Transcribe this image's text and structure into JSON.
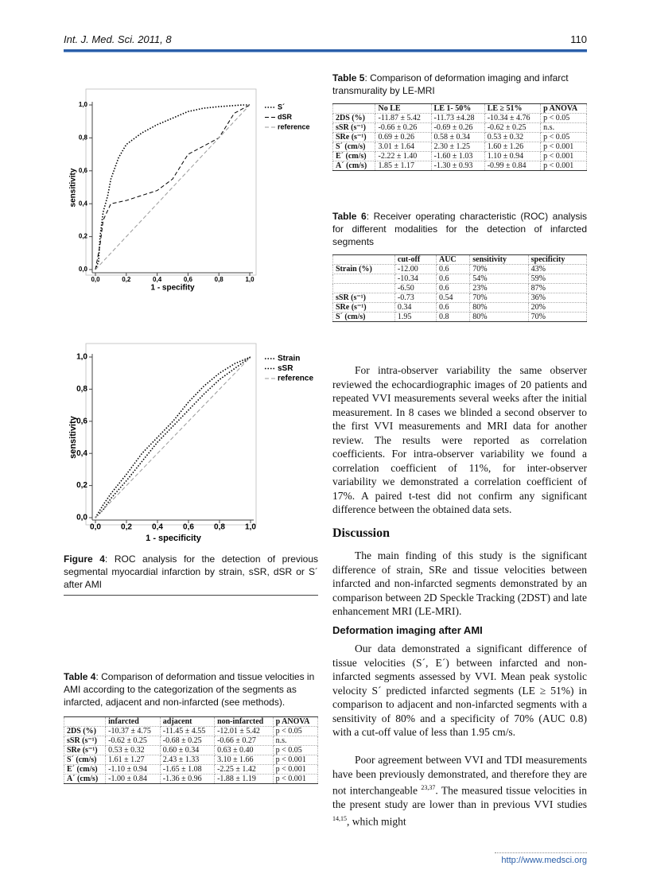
{
  "header": {
    "journal": "Int. J. Med. Sci. 2011, 8",
    "page": "110"
  },
  "chart_data": [
    {
      "type": "line",
      "x_label": "1 - specifity",
      "y_label": "sensitivity",
      "xlim": [
        0,
        1
      ],
      "ylim": [
        0,
        1
      ],
      "xticks": [
        {
          "value": 0,
          "label": "0,0"
        },
        {
          "value": 0.2,
          "label": "0,2"
        },
        {
          "value": 0.4,
          "label": "0,4"
        },
        {
          "value": 0.6,
          "label": "0,6"
        },
        {
          "value": 0.8,
          "label": "0,8"
        },
        {
          "value": 1,
          "label": "1,0"
        }
      ],
      "yticks": [
        {
          "value": 0,
          "label": "0,0"
        },
        {
          "value": 0.2,
          "label": "0,2"
        },
        {
          "value": 0.4,
          "label": "0,4"
        },
        {
          "value": 0.6,
          "label": "0,6"
        },
        {
          "value": 0.8,
          "label": "0,8"
        },
        {
          "value": 1,
          "label": "1,0"
        }
      ],
      "series": [
        {
          "name": "S´",
          "color": "#000000",
          "line_style": "dotted",
          "x": [
            0,
            0.02,
            0.03,
            0.05,
            0.08,
            0.1,
            0.15,
            0.2,
            0.3,
            0.4,
            0.5,
            0.6,
            0.7,
            0.8,
            0.95,
            1
          ],
          "values": [
            0,
            0.05,
            0.2,
            0.35,
            0.45,
            0.55,
            0.68,
            0.76,
            0.83,
            0.88,
            0.92,
            0.96,
            0.98,
            0.99,
            1,
            1
          ]
        },
        {
          "name": "dSR",
          "color": "#000000",
          "line_style": "dashed",
          "x": [
            0,
            0.03,
            0.05,
            0.1,
            0.2,
            0.3,
            0.4,
            0.5,
            0.6,
            0.7,
            0.8,
            0.9,
            1
          ],
          "values": [
            0,
            0.15,
            0.3,
            0.4,
            0.42,
            0.45,
            0.48,
            0.55,
            0.7,
            0.75,
            0.8,
            0.95,
            1
          ]
        },
        {
          "name": "reference",
          "color": "#999999",
          "line_style": "dashed",
          "x": [
            0,
            1
          ],
          "values": [
            0,
            1
          ]
        }
      ]
    },
    {
      "type": "line",
      "x_label": "1 - specificity",
      "y_label": "sensitivity",
      "xlim": [
        0,
        1
      ],
      "ylim": [
        0,
        1
      ],
      "xticks": [
        {
          "value": 0,
          "label": "0,0"
        },
        {
          "value": 0.2,
          "label": "0,2"
        },
        {
          "value": 0.4,
          "label": "0,4"
        },
        {
          "value": 0.6,
          "label": "0,6"
        },
        {
          "value": 0.8,
          "label": "0,8"
        },
        {
          "value": 1,
          "label": "1,0"
        }
      ],
      "yticks": [
        {
          "value": 0,
          "label": "0,0"
        },
        {
          "value": 0.2,
          "label": "0,2"
        },
        {
          "value": 0.4,
          "label": "0,4"
        },
        {
          "value": 0.6,
          "label": "0,6"
        },
        {
          "value": 0.8,
          "label": "0,8"
        },
        {
          "value": 1,
          "label": "1,0"
        }
      ],
      "series": [
        {
          "name": "Strain",
          "color": "#000000",
          "line_style": "dotted",
          "x": [
            0,
            0.05,
            0.1,
            0.2,
            0.3,
            0.4,
            0.5,
            0.6,
            0.7,
            0.8,
            0.9,
            1
          ],
          "values": [
            0,
            0.08,
            0.15,
            0.27,
            0.4,
            0.5,
            0.6,
            0.72,
            0.82,
            0.9,
            0.96,
            1
          ]
        },
        {
          "name": "sSR",
          "color": "#000000",
          "line_style": "dotted",
          "x": [
            0,
            0.05,
            0.1,
            0.2,
            0.3,
            0.4,
            0.5,
            0.6,
            0.7,
            0.8,
            0.9,
            1
          ],
          "values": [
            0,
            0.05,
            0.12,
            0.23,
            0.35,
            0.47,
            0.57,
            0.67,
            0.77,
            0.86,
            0.93,
            1
          ]
        },
        {
          "name": "reference",
          "color": "#999999",
          "line_style": "dashed",
          "x": [
            0,
            1
          ],
          "values": [
            0,
            1
          ]
        }
      ]
    }
  ],
  "figure_caption": {
    "label": "Figure 4",
    "text": ": ROC analysis for the detection of previous segmental myocardial infarction by strain, sSR, dSR or S´ after AMI"
  },
  "table4": {
    "label": "Table 4",
    "caption": ": Comparison of deformation and tissue velocities in AMI according to the categorization of the segments as infarcted, adjacent and non-infarcted (see methods).",
    "rows": [
      [
        null,
        "infarcted",
        "adjacent",
        "non-infarcted",
        "p ANOVA"
      ],
      [
        "2DS (%)",
        "-10.37 ± 4.75",
        "-11.45 ± 4.55",
        "-12.01 ± 5.42",
        "p < 0.05"
      ],
      [
        "sSR (s⁻¹)",
        "-0.62 ± 0.25",
        "-0.68 ± 0.25",
        "-0.66 ± 0.27",
        "n.s."
      ],
      [
        "SRe (s⁻¹)",
        "0.53 ± 0.32",
        "0.60 ± 0.34",
        "0.63 ± 0.40",
        "p < 0.05"
      ],
      [
        "S´ (cm/s)",
        "1.61 ± 1.27",
        "2.43 ± 1.33",
        "3.10 ± 1.66",
        "p < 0.001"
      ],
      [
        "E´ (cm/s)",
        "-1.10 ± 0.94",
        "-1.65 ± 1.08",
        "-2.25 ± 1.42",
        "p < 0.001"
      ],
      [
        "A´ (cm/s)",
        "-1.00 ± 0.84",
        "-1.36 ± 0.96",
        "-1.88 ± 1.19",
        "p < 0.001"
      ]
    ]
  },
  "table5": {
    "label": "Table 5",
    "caption": ": Comparison of deformation imaging and infarct transmurality by LE-MRI",
    "rows": [
      [
        null,
        "No LE",
        "LE 1- 50%",
        "LE ≥ 51%",
        "p ANOVA"
      ],
      [
        "2DS (%)",
        "-11.87 ± 5.42",
        "-11.73 ±4.28",
        "-10.34 ± 4.76",
        "p < 0.05"
      ],
      [
        "sSR (s⁻¹)",
        "-0.66 ± 0.26",
        "-0.69 ± 0.26",
        "-0.62 ± 0.25",
        "n.s."
      ],
      [
        "SRe (s⁻¹)",
        "0.69 ± 0.26",
        "0.58 ± 0.34",
        "0.53 ± 0.32",
        "p < 0.05"
      ],
      [
        "S´ (cm/s)",
        "3.01 ± 1.64",
        "2.30 ± 1.25",
        "1.60 ± 1.26",
        "p < 0.001"
      ],
      [
        "E´ (cm/s)",
        "-2.22 ± 1.40",
        "-1.60 ± 1.03",
        "1.10 ± 0.94",
        "p < 0.001"
      ],
      [
        "A´ (cm/s)",
        "1.85 ± 1.17",
        "-1.30 ± 0.93",
        "-0.99 ± 0.84",
        "p < 0.001"
      ]
    ]
  },
  "table6": {
    "label": "Table 6",
    "caption": ": Receiver operating characteristic (ROC) analysis for different modalities for the detection of infarcted segments",
    "rows": [
      [
        null,
        "cut-off",
        "AUC",
        "sensitivity",
        "specificity"
      ],
      [
        "Strain (%)",
        "-12.00",
        "0.6",
        "70%",
        "43%"
      ],
      [
        null,
        "-10.34",
        "0.6",
        "54%",
        "59%"
      ],
      [
        null,
        "-6.50",
        "0.6",
        "23%",
        "87%"
      ],
      [
        "sSR (s⁻¹)",
        "-0.73",
        "0.54",
        "70%",
        "36%"
      ],
      [
        "SRe (s⁻¹)",
        "0.34",
        "0.6",
        "80%",
        "20%"
      ],
      [
        "S´ (cm/s)",
        "1.95",
        "0.8",
        "80%",
        "70%"
      ]
    ]
  },
  "body": {
    "p1": "For intra-observer variability the same observer reviewed the echocardiographic images of 20 patients and repeated VVI measurements several weeks after the initial measurement. In 8 cases we blinded a second observer to the first VVI measurements and MRI data for another review. The results were reported as correlation coefficients. For intra-observer variability we found a correlation coefficient of 11%, for inter-observer variability we demonstrated a correlation coefficient of 17%. A paired t-test did not confirm any significant difference between the obtained data sets.",
    "heading": "Discussion",
    "p2": "The main finding of this study is the significant difference of strain, SRe and tissue velocities between infarcted and non-infarcted segments demonstrated by an comparison between 2D Speckle Tracking (2DST) and late enhancement MRI (LE-MRI).",
    "subheading": "Deformation imaging after AMI",
    "p3": "Our data demonstrated a significant difference of tissue velocities (S´, E´) between infarcted and non-infarcted segments assessed by VVI. Mean peak systolic velocity S´ predicted infarcted segments (LE ≥ 51%) in comparison to adjacent and non-infarcted segments with a sensitivity of 80% and a specificity of 70% (AUC 0.8) with a cut-off value of less than 1.95 cm/s.",
    "p4_text_1": "Poor agreement between VVI and TDI measurements have been previously demonstrated, and therefore they are not interchangeable ",
    "p4_ref_1": "23,37",
    "p4_text_2": ". The measured tissue velocities in the present study are lower than in previous VVI studies ",
    "p4_ref_2": "14,15",
    "p4_text_3": ", which might"
  },
  "footer": {
    "url": "http://www.medsci.org"
  }
}
